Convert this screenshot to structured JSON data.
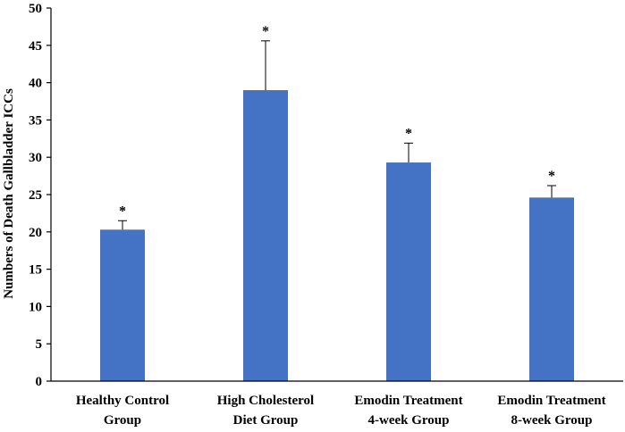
{
  "chart_data": {
    "type": "bar",
    "title": "",
    "xlabel": "",
    "ylabel": "Numbers of Death Gallbladder ICCs",
    "ylim": [
      0,
      50
    ],
    "yticks": [
      0,
      5,
      10,
      15,
      20,
      25,
      30,
      35,
      40,
      45,
      50
    ],
    "grid": false,
    "legend": "none",
    "categories": [
      [
        "Healthy Control",
        "Group"
      ],
      [
        "High Cholesterol",
        "Diet Group"
      ],
      [
        "Emodin Treatment",
        "4-week Group"
      ],
      [
        "Emodin Treatment",
        "8-week Group"
      ]
    ],
    "values": [
      20.3,
      39.0,
      29.3,
      24.6
    ],
    "error_upper": [
      1.2,
      6.6,
      2.6,
      1.6
    ],
    "annotations": [
      "*",
      "*",
      "*",
      "*"
    ],
    "bar_color": "#4472C4",
    "axis_color": "#000000",
    "errorbar_color": "#000000"
  }
}
